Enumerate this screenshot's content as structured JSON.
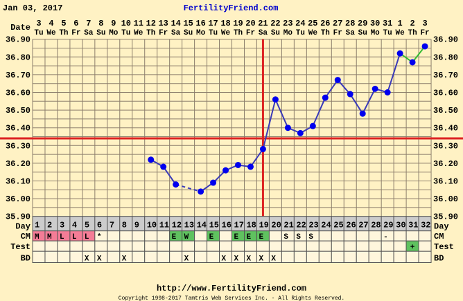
{
  "header": {
    "date": "Jan 03, 2017",
    "site": "FertilityFriend.com",
    "date_row_label": "Date"
  },
  "row_labels": {
    "day": "Day",
    "cm": "CM",
    "test": "Test",
    "bd": "BD"
  },
  "footer": {
    "url": "http://www.FertilityFriend.com",
    "copyright": "Copyright 1998-2017 Tamtris Web Services Inc. - All Rights Reserved."
  },
  "colors": {
    "background": "#fff2c4",
    "line": "#3a3ab8",
    "point": "#0000ee",
    "post_test_line": "#33bb33",
    "coverline": "#dd2222",
    "cm_menstrual": "#f47c96",
    "cm_fertile": "#5fc25f",
    "test_positive": "#5fc25f",
    "day_row": "#cccccc",
    "cell": "#fff6dc"
  },
  "chart_data": {
    "type": "line",
    "title": "",
    "ylim": [
      35.9,
      36.9
    ],
    "y_ticks": [
      "36.90",
      "36.80",
      "36.70",
      "36.60",
      "36.50",
      "36.40",
      "36.30",
      "36.20",
      "36.10",
      "36.00",
      "35.90"
    ],
    "cycle_days": [
      "1",
      "2",
      "3",
      "4",
      "5",
      "6",
      "7",
      "8",
      "9",
      "10",
      "11",
      "12",
      "13",
      "14",
      "15",
      "16",
      "17",
      "18",
      "19",
      "20",
      "21",
      "22",
      "23",
      "24",
      "25",
      "26",
      "27",
      "28",
      "29",
      "30",
      "31",
      "32"
    ],
    "dates": [
      "3",
      "4",
      "5",
      "6",
      "7",
      "8",
      "9",
      "10",
      "11",
      "12",
      "13",
      "14",
      "15",
      "16",
      "17",
      "18",
      "19",
      "20",
      "21",
      "22",
      "23",
      "24",
      "25",
      "26",
      "27",
      "28",
      "29",
      "30",
      "31",
      "1",
      "2",
      "3"
    ],
    "weekdays": [
      "Tu",
      "We",
      "Th",
      "Fr",
      "Sa",
      "Su",
      "Mo",
      "Tu",
      "We",
      "Th",
      "Fr",
      "Sa",
      "Su",
      "Mo",
      "Tu",
      "We",
      "Th",
      "Fr",
      "Sa",
      "Su",
      "Mo",
      "Tu",
      "We",
      "Th",
      "Fr",
      "Sa",
      "Su",
      "Mo",
      "Tu",
      "We",
      "Th",
      "Fr"
    ],
    "temperatures": [
      null,
      null,
      null,
      null,
      null,
      null,
      null,
      null,
      null,
      36.22,
      36.18,
      36.08,
      null,
      36.04,
      36.09,
      36.16,
      36.19,
      36.18,
      36.28,
      36.56,
      36.4,
      36.37,
      36.41,
      36.57,
      36.67,
      36.59,
      36.48,
      36.62,
      36.6,
      36.82,
      36.77,
      36.86
    ],
    "coverline": 36.34,
    "ovulation_day": 19,
    "post_test_from_day": 30,
    "grid": true
  },
  "rows": {
    "cm": [
      "M",
      "M",
      "L",
      "L",
      "L",
      "*",
      "",
      "",
      "",
      "",
      "",
      "E",
      "W",
      "",
      "E",
      "",
      "E",
      "E",
      "E",
      "",
      "S",
      "S",
      "S",
      "",
      "",
      "",
      "",
      "",
      "-",
      "",
      "",
      ""
    ],
    "cm_kind": [
      "m",
      "m",
      "m",
      "m",
      "m",
      "",
      "",
      "",
      "",
      "",
      "",
      "f",
      "f",
      "",
      "f",
      "",
      "f",
      "f",
      "f",
      "",
      "",
      "",
      "",
      "",
      "",
      "",
      "",
      "",
      "",
      "",
      "",
      ""
    ],
    "test": [
      "",
      "",
      "",
      "",
      "",
      "",
      "",
      "",
      "",
      "",
      "",
      "",
      "",
      "",
      "",
      "",
      "",
      "",
      "",
      "",
      "",
      "",
      "",
      "",
      "",
      "",
      "",
      "",
      "",
      "",
      "+",
      ""
    ],
    "bd": [
      "",
      "",
      "",
      "",
      "X",
      "X",
      "",
      "X",
      "",
      "",
      "",
      "",
      "X",
      "",
      "",
      "X",
      "X",
      "X",
      "X",
      "X",
      "",
      "",
      "",
      "",
      "",
      "",
      "",
      "",
      "",
      "",
      "",
      ""
    ]
  }
}
